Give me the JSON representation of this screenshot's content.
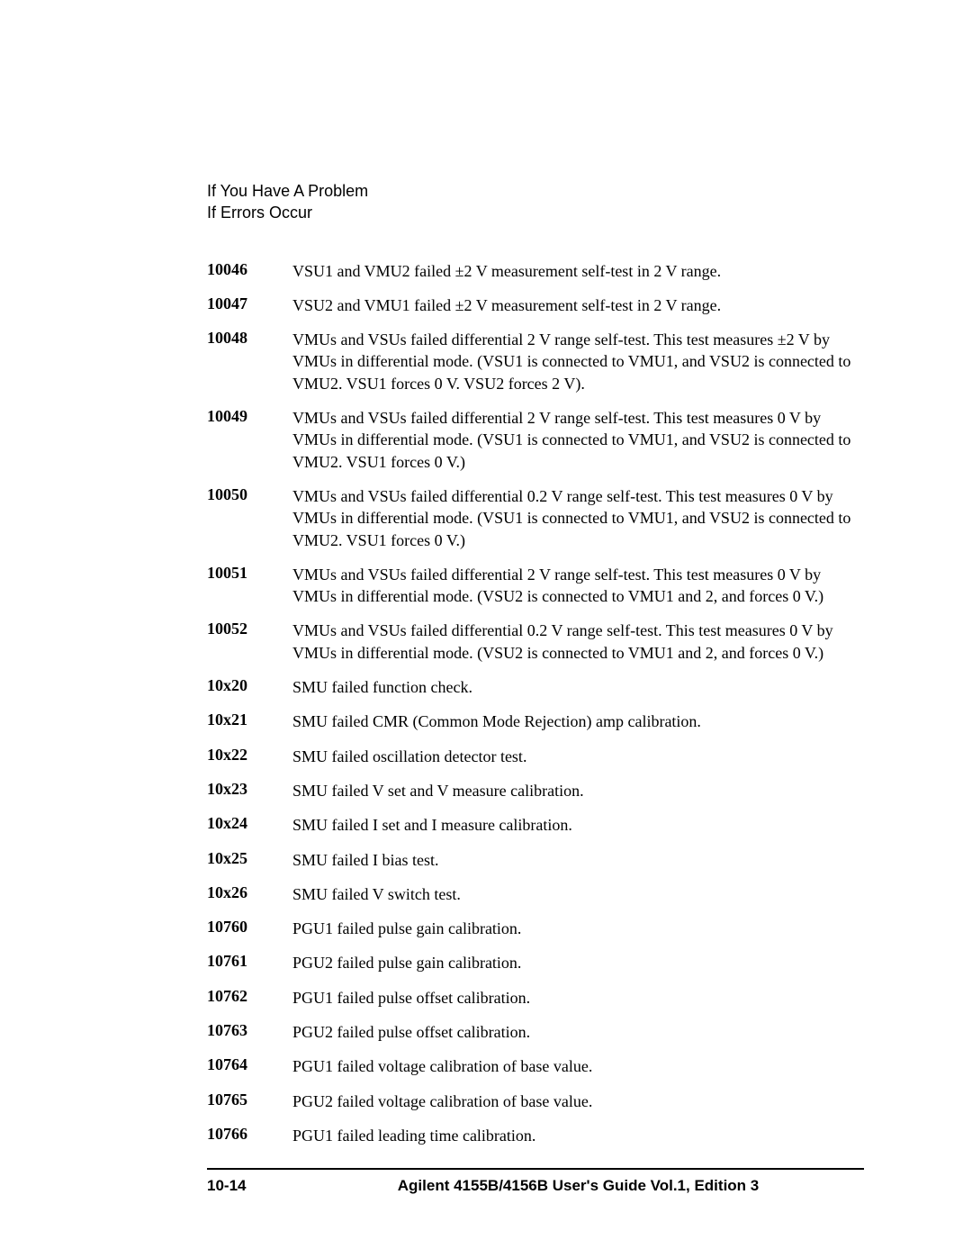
{
  "header": {
    "line1": "If You Have A Problem",
    "line2": "If Errors Occur"
  },
  "entries": [
    {
      "code": "10046",
      "desc": "VSU1 and VMU2 failed ±2 V measurement self-test in 2 V range."
    },
    {
      "code": "10047",
      "desc": "VSU2 and VMU1 failed ±2 V measurement self-test in 2 V range."
    },
    {
      "code": "10048",
      "desc": "VMUs and VSUs failed differential 2 V range self-test. This test measures ±2 V by VMUs in differential mode. (VSU1 is connected to VMU1, and VSU2 is connected to VMU2. VSU1 forces 0 V. VSU2 forces 2 V)."
    },
    {
      "code": "10049",
      "desc": "VMUs and VSUs failed differential 2 V range self-test. This test measures 0 V by VMUs in differential mode. (VSU1 is connected to VMU1, and VSU2 is connected to VMU2. VSU1 forces 0 V.)"
    },
    {
      "code": "10050",
      "desc": "VMUs and VSUs failed differential 0.2 V range self-test. This test measures 0 V by VMUs in differential mode. (VSU1 is connected to VMU1, and VSU2 is connected to VMU2. VSU1 forces 0 V.)"
    },
    {
      "code": "10051",
      "desc": "VMUs and VSUs failed differential 2 V range self-test. This test measures 0 V by VMUs in differential mode. (VSU2 is connected to VMU1 and 2, and forces 0 V.)"
    },
    {
      "code": "10052",
      "desc": "VMUs and VSUs failed differential 0.2 V range self-test. This test measures 0 V by VMUs in differential mode. (VSU2 is connected to VMU1 and 2, and forces 0 V.)"
    },
    {
      "code": "10x20",
      "desc": "SMU failed function check."
    },
    {
      "code": "10x21",
      "desc": "SMU failed CMR (Common Mode Rejection) amp calibration."
    },
    {
      "code": "10x22",
      "desc": "SMU failed oscillation detector test."
    },
    {
      "code": "10x23",
      "desc": "SMU failed V set and V measure calibration."
    },
    {
      "code": "10x24",
      "desc": "SMU failed I set and I measure calibration."
    },
    {
      "code": "10x25",
      "desc": "SMU failed I bias test."
    },
    {
      "code": "10x26",
      "desc": "SMU failed V switch test."
    },
    {
      "code": "10760",
      "desc": "PGU1 failed pulse gain calibration."
    },
    {
      "code": "10761",
      "desc": "PGU2 failed pulse gain calibration."
    },
    {
      "code": "10762",
      "desc": "PGU1 failed pulse offset calibration."
    },
    {
      "code": "10763",
      "desc": "PGU2 failed pulse offset calibration."
    },
    {
      "code": "10764",
      "desc": "PGU1 failed voltage calibration of base value."
    },
    {
      "code": "10765",
      "desc": "PGU2 failed voltage calibration of base value."
    },
    {
      "code": "10766",
      "desc": "PGU1 failed leading time calibration."
    }
  ],
  "footer": {
    "page": "10-14",
    "title": "Agilent 4155B/4156B User's Guide Vol.1, Edition 3"
  }
}
